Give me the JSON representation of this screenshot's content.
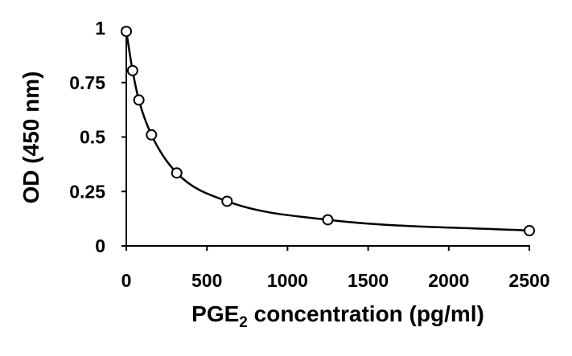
{
  "chart_data": {
    "type": "scatter",
    "title": "",
    "xlabel": {
      "prefix": "PGE",
      "subscript": "2",
      "suffix": " concentration (pg/ml)"
    },
    "ylabel": "OD (450 nm)",
    "xlim": [
      0,
      2500
    ],
    "ylim": [
      0,
      1
    ],
    "x_ticks": [
      0,
      500,
      1000,
      1500,
      2000,
      2500
    ],
    "x_tick_labels": [
      "0",
      "500",
      "1000",
      "1500",
      "2000",
      "2500"
    ],
    "y_ticks": [
      0,
      0.25,
      0.5,
      0.75,
      1
    ],
    "y_tick_labels": [
      "0",
      "0.25",
      "0.5",
      "0.75",
      "1"
    ],
    "grid": false,
    "legend": "none",
    "series": [
      {
        "points": [
          {
            "x": 0,
            "y": 0.985
          },
          {
            "x": 39,
            "y": 0.805
          },
          {
            "x": 78,
            "y": 0.67
          },
          {
            "x": 156,
            "y": 0.51
          },
          {
            "x": 313,
            "y": 0.335
          },
          {
            "x": 625,
            "y": 0.205
          },
          {
            "x": 1250,
            "y": 0.12
          },
          {
            "x": 2500,
            "y": 0.07
          }
        ],
        "fit_curve": true,
        "marker": "open-circle",
        "color": "#000000"
      }
    ]
  }
}
